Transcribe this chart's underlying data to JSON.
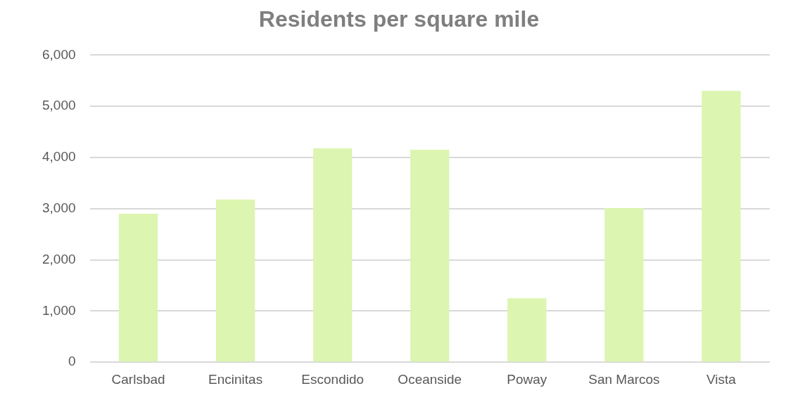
{
  "chart_data": {
    "type": "bar",
    "title": "Residents per square mile",
    "categories": [
      "Carlsbad",
      "Encinitas",
      "Escondido",
      "Oceanside",
      "Poway",
      "San Marcos",
      "Vista"
    ],
    "values": [
      2900,
      3180,
      4180,
      4150,
      1250,
      3010,
      5300
    ],
    "color": "#dcf5b0",
    "ylim": [
      0,
      6000
    ],
    "yticks": [
      0,
      {
        "value": 1000,
        "label": "1,000"
      },
      {
        "value": 2000,
        "label": "2,000"
      },
      {
        "value": 3000,
        "label": "3,000"
      },
      {
        "value": 4000,
        "label": "4,000"
      },
      {
        "value": 5000,
        "label": "5,000"
      },
      {
        "value": 6000,
        "label": "6,000"
      }
    ],
    "grid": "y",
    "legend": false
  }
}
